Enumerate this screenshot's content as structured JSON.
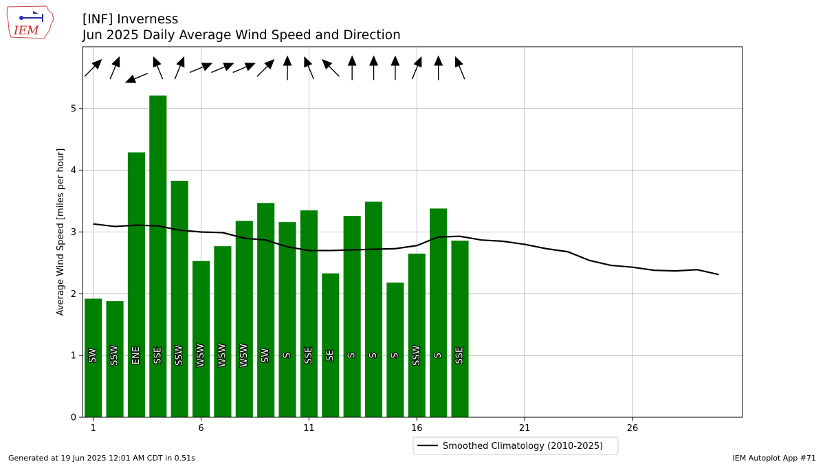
{
  "header": {
    "title_line1": "[INF] Inverness",
    "title_line2": "Jun 2025 Daily Average Wind Speed and Direction"
  },
  "logo": {
    "text": "IEM"
  },
  "footer": {
    "left": "Generated at 19 Jun 2025 12:01 AM CDT in 0.51s",
    "right": "IEM Autoplot App #71"
  },
  "colors": {
    "bar": "#008000",
    "climo": "#000000",
    "grid": "#b0b0b0"
  },
  "chart_data": {
    "type": "bar",
    "ylabel": "Average Wind Speed [miles per hour]",
    "xlabel": "",
    "xlim": [
      0.5,
      31.1
    ],
    "ylim": [
      0,
      6
    ],
    "xticks": [
      1,
      6,
      11,
      16,
      21,
      26
    ],
    "yticks": [
      0,
      1,
      2,
      3,
      4,
      5
    ],
    "grid": true,
    "legend_position": "bottom-center",
    "days": [
      1,
      2,
      3,
      4,
      5,
      6,
      7,
      8,
      9,
      10,
      11,
      12,
      13,
      14,
      15,
      16,
      17,
      18
    ],
    "values": [
      1.92,
      1.88,
      4.29,
      5.21,
      3.83,
      2.53,
      2.77,
      3.18,
      3.47,
      3.16,
      3.35,
      2.33,
      3.26,
      3.49,
      2.18,
      2.65,
      3.38,
      2.86
    ],
    "directions": [
      "SW",
      "SSW",
      "ENE",
      "SSE",
      "SSW",
      "WSW",
      "WSW",
      "WSW",
      "SW",
      "S",
      "SSE",
      "SE",
      "S",
      "S",
      "S",
      "SSW",
      "S",
      "SSE"
    ],
    "wind_from_deg": [
      225,
      202.5,
      67.5,
      157.5,
      202.5,
      247.5,
      247.5,
      247.5,
      225,
      180,
      157.5,
      135,
      180,
      180,
      180,
      202.5,
      180,
      157.5
    ],
    "climatology": {
      "name": "Smoothed Climatology (2010-2025)",
      "days": [
        1,
        2,
        3,
        4,
        5,
        6,
        7,
        8,
        9,
        10,
        11,
        12,
        13,
        14,
        15,
        16,
        17,
        18,
        19,
        20,
        21,
        22,
        23,
        24,
        25,
        26,
        27,
        28,
        29,
        30
      ],
      "values": [
        3.13,
        3.09,
        3.11,
        3.1,
        3.03,
        3.0,
        2.99,
        2.9,
        2.87,
        2.76,
        2.7,
        2.7,
        2.71,
        2.72,
        2.73,
        2.78,
        2.92,
        2.93,
        2.87,
        2.85,
        2.8,
        2.73,
        2.68,
        2.54,
        2.46,
        2.43,
        2.38,
        2.37,
        2.39,
        2.31
      ]
    }
  }
}
